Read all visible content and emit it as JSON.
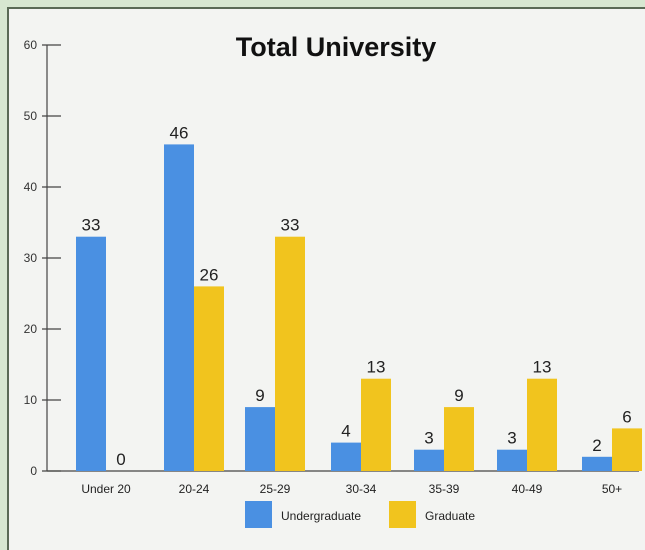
{
  "chart_data": {
    "type": "bar",
    "title": "Total University",
    "xlabel": "",
    "ylabel": "",
    "ylim": [
      0,
      60
    ],
    "yticks": [
      0,
      10,
      20,
      30,
      40,
      50,
      60
    ],
    "categories": [
      "Under 20",
      "20-24",
      "25-29",
      "30-34",
      "35-39",
      "40-49",
      "50+"
    ],
    "series": [
      {
        "name": "Undergraduate",
        "color": "#4a90e2",
        "values": [
          33,
          46,
          9,
          4,
          3,
          3,
          2
        ]
      },
      {
        "name": "Graduate",
        "color": "#f1c41e",
        "values": [
          0,
          26,
          33,
          13,
          9,
          13,
          6
        ]
      }
    ],
    "grid": false,
    "legend": "bottom"
  }
}
